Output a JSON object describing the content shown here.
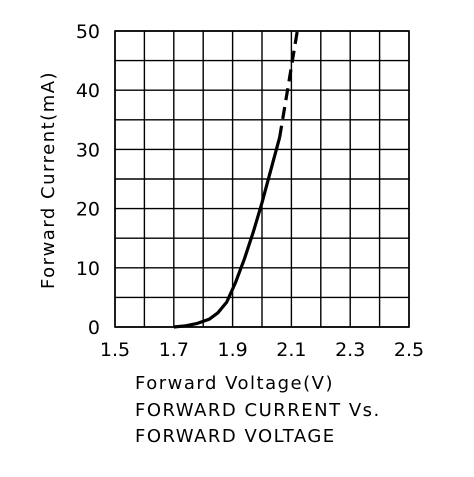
{
  "chart_data": {
    "type": "line",
    "title": "FORWARD CURRENT Vs.",
    "subtitle": "FORWARD VOLTAGE",
    "xlabel": "Forward Voltage(V)",
    "ylabel": "Forward Current(mA)",
    "xlim": [
      1.5,
      2.5
    ],
    "ylim": [
      0,
      50
    ],
    "x_ticks": [
      "1.5",
      "1.7",
      "1.9",
      "2.1",
      "2.3",
      "2.5"
    ],
    "y_ticks": [
      "0",
      "10",
      "20",
      "30",
      "40",
      "50"
    ],
    "x_minor_step": 0.1,
    "y_minor_step": 5,
    "grid": true,
    "series": [
      {
        "style": "solid",
        "color": "#000000",
        "points": [
          [
            1.7,
            0.0
          ],
          [
            1.74,
            0.2
          ],
          [
            1.78,
            0.6
          ],
          [
            1.82,
            1.3
          ],
          [
            1.85,
            2.4
          ],
          [
            1.88,
            4.2
          ],
          [
            1.91,
            7.5
          ],
          [
            1.94,
            11.5
          ],
          [
            1.97,
            16.0
          ],
          [
            2.0,
            21.0
          ],
          [
            2.03,
            26.5
          ],
          [
            2.06,
            32.0
          ]
        ]
      },
      {
        "style": "dashed",
        "color": "#000000",
        "points": [
          [
            2.06,
            32.0
          ],
          [
            2.09,
            41.0
          ],
          [
            2.12,
            50.0
          ]
        ]
      }
    ]
  }
}
